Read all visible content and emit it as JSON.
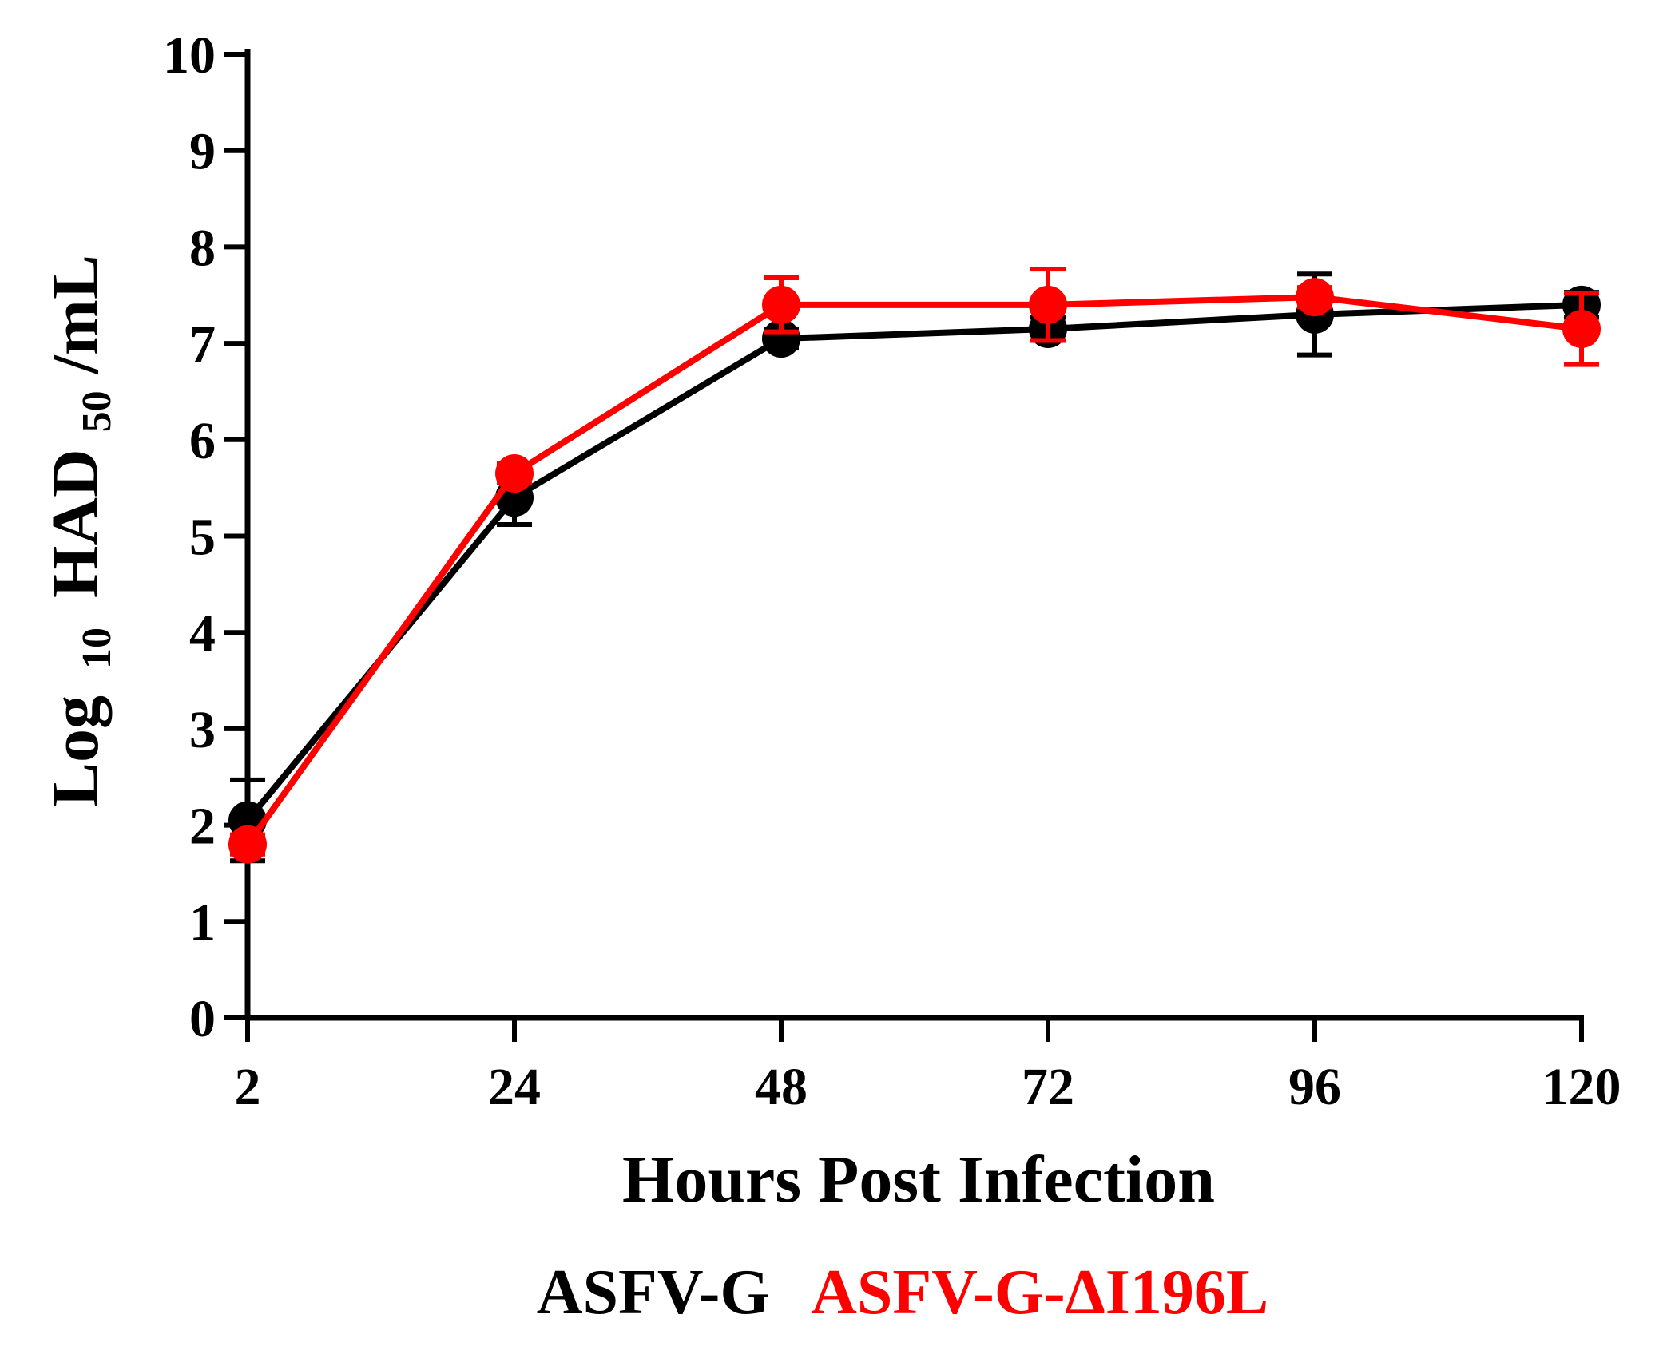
{
  "chart_data": {
    "type": "line",
    "xlabel": "Hours Post Infection",
    "ylabel": {
      "prefix": "Log",
      "base": "10",
      "mid": "HAD",
      "sub": "50",
      "suffix": "/mL"
    },
    "ylim": [
      0,
      10
    ],
    "yticks": [
      "0",
      "1",
      "2",
      "3",
      "4",
      "5",
      "6",
      "7",
      "8",
      "9",
      "10"
    ],
    "categories": [
      "2",
      "24",
      "48",
      "72",
      "96",
      "120"
    ],
    "x_scale": "categorical",
    "grid": false,
    "legend_position": "bottom",
    "series": [
      {
        "name": "ASFV-G",
        "color": "#000000",
        "values": [
          2.05,
          5.4,
          7.05,
          7.15,
          7.3,
          7.4
        ],
        "error": [
          0.42,
          0.28,
          0.1,
          0.12,
          0.42,
          0.13
        ]
      },
      {
        "name": "ASFV-G-ΔI196L",
        "color": "#ff0000",
        "values": [
          1.8,
          5.65,
          7.4,
          7.4,
          7.48,
          7.15
        ],
        "error": [
          0.1,
          0.1,
          0.28,
          0.37,
          0.1,
          0.37
        ]
      }
    ]
  }
}
